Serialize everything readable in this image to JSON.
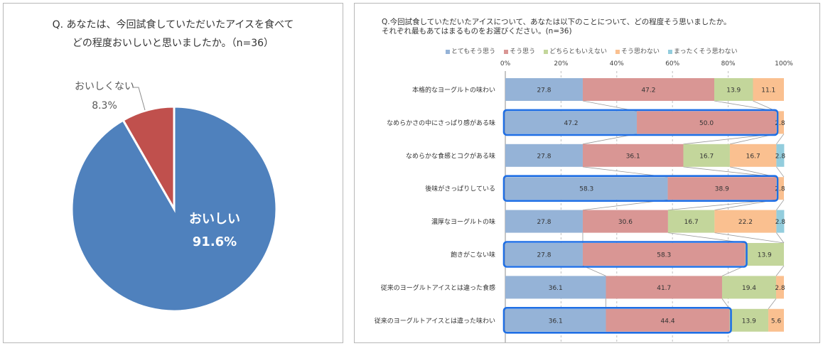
{
  "chart_data": [
    {
      "type": "pie",
      "title_lines": [
        "Q. あなたは、今回試食していただいたアイスを食べて",
        "どの程度おいしいと思いましたか。（n=36）"
      ],
      "slices": [
        {
          "label": "おいしい",
          "value": 91.6,
          "value_text": "91.6%",
          "color": "#4f81bd"
        },
        {
          "label": "おいしくない",
          "value": 8.3,
          "value_text": "8.3%",
          "color": "#c0504d"
        }
      ]
    },
    {
      "type": "bar",
      "orientation": "horizontal-stacked-100",
      "title_lines": [
        "Q.今回試食していただいたアイスについて、あなたは以下のことについて、どの程度そう思いましたか。",
        "それぞれ最もあてはまるものをお選びください。(n=36)"
      ],
      "xlim": [
        0,
        100
      ],
      "x_ticks": [
        "0%",
        "20%",
        "40%",
        "60%",
        "80%",
        "100%"
      ],
      "series": [
        {
          "name": "とてもそう思う",
          "color": "#95b3d7"
        },
        {
          "name": "そう思う",
          "color": "#d99694"
        },
        {
          "name": "どちらともいえない",
          "color": "#c3d69b"
        },
        {
          "name": "そう思わない",
          "color": "#fac090"
        },
        {
          "name": "まったくそう思わない",
          "color": "#93cddd"
        }
      ],
      "rows": [
        {
          "label": "本格的なヨーグルトの味わい",
          "values": [
            27.8,
            47.2,
            13.9,
            11.1,
            0
          ],
          "labels": [
            "27.8",
            "47.2",
            "13.9",
            "11.1",
            ""
          ],
          "highlight": false
        },
        {
          "label": "なめらかさの中にさっぱり感がある味",
          "values": [
            47.2,
            50.0,
            0,
            2.8,
            0
          ],
          "labels": [
            "47.2",
            "50.0",
            "",
            "2.8",
            ""
          ],
          "highlight": true,
          "highlight_segments": 2
        },
        {
          "label": "なめらかな食感とコクがある味",
          "values": [
            27.8,
            36.1,
            16.7,
            16.7,
            2.8
          ],
          "labels": [
            "27.8",
            "36.1",
            "16.7",
            "16.7",
            "2.8"
          ],
          "highlight": false
        },
        {
          "label": "後味がさっぱりしている",
          "values": [
            58.3,
            38.9,
            0,
            2.8,
            0
          ],
          "labels": [
            "58.3",
            "38.9",
            "",
            "2.8",
            ""
          ],
          "highlight": true,
          "highlight_segments": 2
        },
        {
          "label": "濃厚なヨーグルトの味",
          "values": [
            27.8,
            30.6,
            16.7,
            22.2,
            2.8
          ],
          "labels": [
            "27.8",
            "30.6",
            "16.7",
            "22.2",
            "2.8"
          ],
          "highlight": false
        },
        {
          "label": "飽きがこない味",
          "values": [
            27.8,
            58.3,
            13.9,
            0,
            0
          ],
          "labels": [
            "27.8",
            "58.3",
            "13.9",
            "",
            ""
          ],
          "highlight": true,
          "highlight_segments": 2
        },
        {
          "label": "従来のヨーグルトアイスとは違った食感",
          "values": [
            36.1,
            41.7,
            19.4,
            2.8,
            0
          ],
          "labels": [
            "36.1",
            "41.7",
            "19.4",
            "2.8",
            ""
          ],
          "highlight": false
        },
        {
          "label": "従来のヨーグルトアイスとは違った味わい",
          "values": [
            36.1,
            44.4,
            13.9,
            5.6,
            0
          ],
          "labels": [
            "36.1",
            "44.4",
            "13.9",
            "5.6",
            ""
          ],
          "highlight": true,
          "highlight_segments": 2
        }
      ],
      "highlight_color": "#1f6fe5"
    }
  ]
}
